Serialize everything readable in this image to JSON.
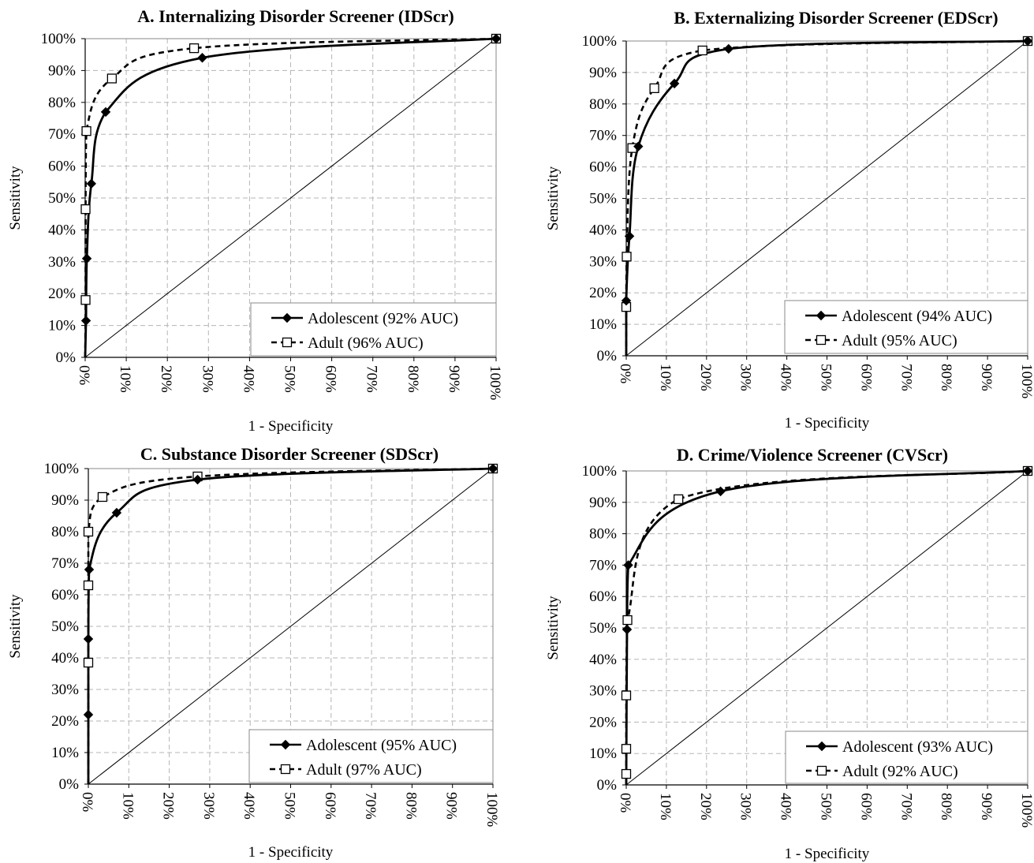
{
  "chart_data": [
    {
      "type": "line",
      "title": "A. Internalizing Disorder Screener (IDScr)",
      "xlabel": "1 - Specificity",
      "ylabel": "Sensitivity",
      "xlim": [
        0,
        100
      ],
      "ylim": [
        0,
        100
      ],
      "x_ticks": [
        "0%",
        "10%",
        "20%",
        "30%",
        "40%",
        "50%",
        "60%",
        "70%",
        "80%",
        "90%",
        "100%"
      ],
      "y_ticks": [
        "0%",
        "10%",
        "20%",
        "30%",
        "40%",
        "50%",
        "60%",
        "70%",
        "80%",
        "90%",
        "100%"
      ],
      "grid": true,
      "legend": "bottom-right",
      "series": [
        {
          "name": "Adolescent (92% AUC)",
          "marker": "diamond",
          "line": "solid",
          "points": [
            [
              0,
              0
            ],
            [
              0.2,
              11.5
            ],
            [
              0.4,
              31
            ],
            [
              1.5,
              54.5
            ],
            [
              5,
              77
            ],
            [
              28.5,
              94
            ],
            [
              100,
              100
            ]
          ]
        },
        {
          "name": "Adult (96% AUC)",
          "marker": "square",
          "line": "dashed",
          "points": [
            [
              0,
              0
            ],
            [
              0.1,
              18
            ],
            [
              0.1,
              46.5
            ],
            [
              0.3,
              71
            ],
            [
              6.5,
              87.5
            ],
            [
              26.5,
              97
            ],
            [
              100,
              100
            ]
          ]
        }
      ],
      "diagonal": true
    },
    {
      "type": "line",
      "title": "B. Externalizing Disorder Screener (EDScr)",
      "xlabel": "1 - Specificity",
      "ylabel": "Sensitivity",
      "xlim": [
        0,
        100
      ],
      "ylim": [
        0,
        100
      ],
      "x_ticks": [
        "0%",
        "10%",
        "20%",
        "30%",
        "40%",
        "50%",
        "60%",
        "70%",
        "80%",
        "90%",
        "100%"
      ],
      "y_ticks": [
        "0%",
        "10%",
        "20%",
        "30%",
        "40%",
        "50%",
        "60%",
        "70%",
        "80%",
        "90%",
        "100%"
      ],
      "grid": true,
      "legend": "bottom-right",
      "series": [
        {
          "name": "Adolescent (94% AUC)",
          "marker": "diamond",
          "line": "solid",
          "points": [
            [
              0,
              0
            ],
            [
              0,
              17.5
            ],
            [
              0.8,
              38
            ],
            [
              3,
              66.5
            ],
            [
              12,
              86.5
            ],
            [
              25.5,
              97.5
            ],
            [
              100,
              100
            ]
          ]
        },
        {
          "name": "Adult (95% AUC)",
          "marker": "square",
          "line": "dashed",
          "points": [
            [
              0,
              0
            ],
            [
              0,
              15.5
            ],
            [
              0.1,
              31.5
            ],
            [
              1.5,
              66
            ],
            [
              7,
              85
            ],
            [
              19,
              97
            ],
            [
              100,
              100
            ]
          ]
        }
      ],
      "diagonal": true
    },
    {
      "type": "line",
      "title": "C. Substance Disorder Screener (SDScr)",
      "xlabel": "1 - Specificity",
      "ylabel": "Sensitivity",
      "xlim": [
        0,
        100
      ],
      "ylim": [
        0,
        100
      ],
      "x_ticks": [
        "0%",
        "10%",
        "20%",
        "30%",
        "40%",
        "50%",
        "60%",
        "70%",
        "80%",
        "90%",
        "100%"
      ],
      "y_ticks": [
        "0%",
        "10%",
        "20%",
        "30%",
        "40%",
        "50%",
        "60%",
        "70%",
        "80%",
        "90%",
        "100%"
      ],
      "grid": true,
      "legend": "bottom-right",
      "series": [
        {
          "name": "Adolescent (95% AUC)",
          "marker": "diamond",
          "line": "solid",
          "points": [
            [
              0,
              0
            ],
            [
              0,
              22
            ],
            [
              0,
              46
            ],
            [
              0.2,
              68
            ],
            [
              7,
              86
            ],
            [
              27,
              96.5
            ],
            [
              100,
              100
            ]
          ]
        },
        {
          "name": "Adult (97% AUC)",
          "marker": "square",
          "line": "dashed",
          "points": [
            [
              0,
              0
            ],
            [
              0,
              38.5
            ],
            [
              0,
              63
            ],
            [
              0,
              80
            ],
            [
              3.5,
              91
            ],
            [
              27,
              97.5
            ],
            [
              100,
              100
            ]
          ]
        }
      ],
      "diagonal": true
    },
    {
      "type": "line",
      "title": "D. Crime/Violence Screener (CVScr)",
      "xlabel": "1 - Specificity",
      "ylabel": "Sensitivity",
      "xlim": [
        0,
        100
      ],
      "ylim": [
        0,
        100
      ],
      "x_ticks": [
        "0%",
        "10%",
        "20%",
        "30%",
        "40%",
        "50%",
        "60%",
        "70%",
        "80%",
        "90%",
        "100%"
      ],
      "y_ticks": [
        "0%",
        "10%",
        "20%",
        "30%",
        "40%",
        "50%",
        "60%",
        "70%",
        "80%",
        "90%",
        "100%"
      ],
      "grid": true,
      "legend": "bottom-right",
      "series": [
        {
          "name": "Adolescent (93% AUC)",
          "marker": "diamond",
          "line": "solid",
          "points": [
            [
              0,
              0
            ],
            [
              0.2,
              49.5
            ],
            [
              0.5,
              70
            ],
            [
              23.5,
              93.5
            ],
            [
              100,
              100
            ]
          ]
        },
        {
          "name": "Adult (92% AUC)",
          "marker": "square",
          "line": "dashed",
          "points": [
            [
              0,
              0
            ],
            [
              0,
              3.5
            ],
            [
              0,
              11.5
            ],
            [
              0,
              28.5
            ],
            [
              0.3,
              52.5
            ],
            [
              13,
              91
            ],
            [
              100,
              100
            ]
          ]
        }
      ],
      "diagonal": true
    }
  ]
}
